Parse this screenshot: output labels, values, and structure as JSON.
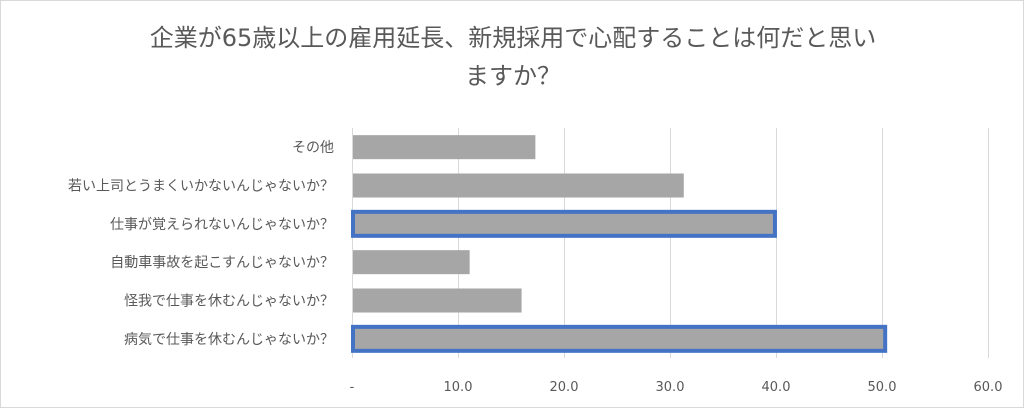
{
  "title": {
    "line1": "企業が65歳以上の雇用延長、新規採用で心配することは何だと思い",
    "line2": "ますか？"
  },
  "colors": {
    "bar": "#a6a6a6",
    "highlight": "#4472c4",
    "grid": "#d9d9d9",
    "text": "#595959"
  },
  "chart_data": {
    "type": "bar",
    "orientation": "horizontal",
    "categories": [
      "その他",
      "若い上司とうまくいかないんじゃないか？",
      "仕事が覚えられないんじゃないか？",
      "自動車事故を起こすんじゃないか？",
      "怪我で仕事を休むんじゃないか？",
      "病気で仕事を休むんじゃないか？"
    ],
    "values": [
      17.3,
      31.3,
      39.9,
      11.1,
      16.0,
      50.3
    ],
    "highlighted": [
      false,
      false,
      true,
      false,
      false,
      true
    ],
    "xlim": [
      0,
      60
    ],
    "ticks": [
      0,
      10,
      20,
      30,
      40,
      50,
      60
    ],
    "tick_labels": [
      "-",
      "10.0",
      "20.0",
      "30.0",
      "40.0",
      "50.0",
      "60.0"
    ],
    "grid": true,
    "legend": "none"
  }
}
